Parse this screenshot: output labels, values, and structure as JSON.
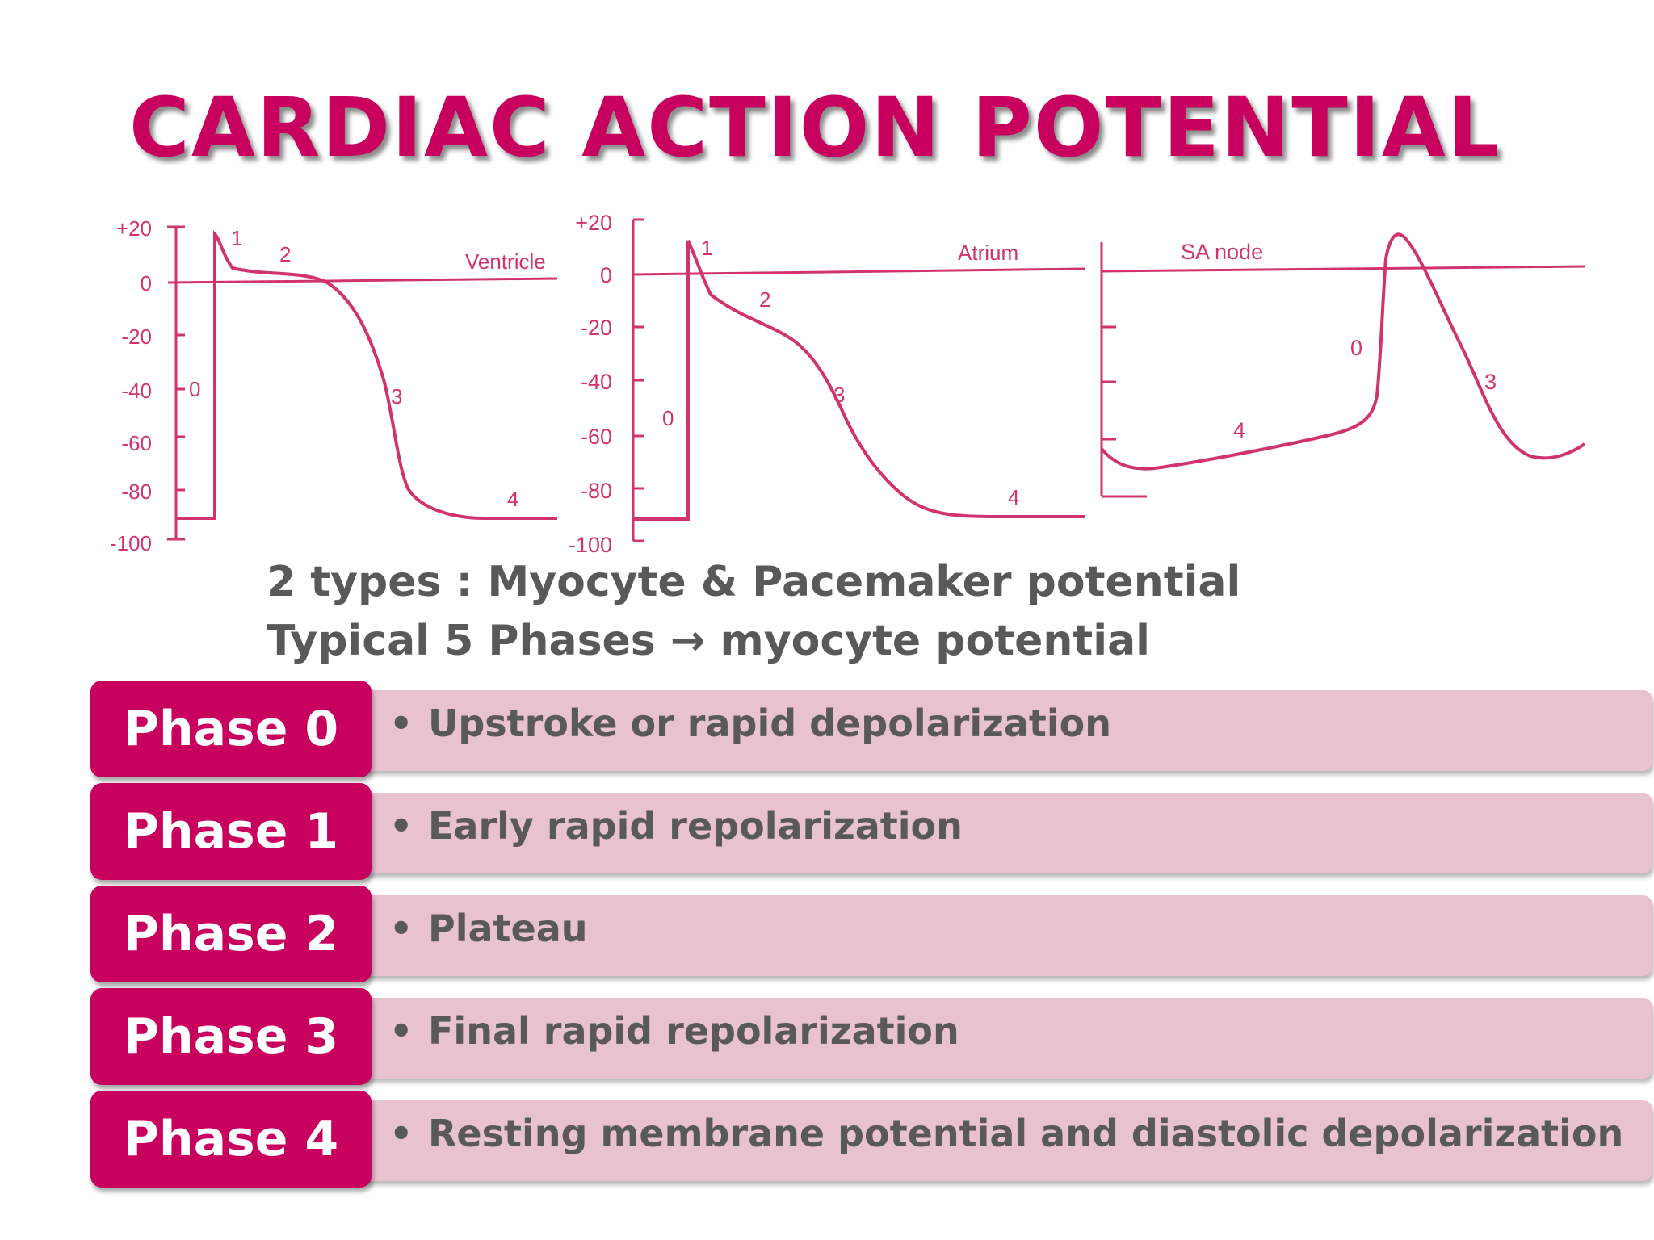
{
  "title": "CARDIAC ACTION POTENTIAL",
  "diagrams": {
    "ventricle": {
      "label": "Ventricle",
      "y_ticks": [
        "+20",
        "0",
        "-20",
        "-40",
        "-60",
        "-80",
        "-100"
      ],
      "phase_labels": [
        "0",
        "1",
        "2",
        "3",
        "4"
      ]
    },
    "atrium": {
      "label": "Atrium",
      "y_ticks": [
        "+20",
        "0",
        "-20",
        "-40",
        "-60",
        "-80",
        "-100"
      ],
      "phase_labels": [
        "0",
        "1",
        "2",
        "3",
        "4"
      ]
    },
    "sa_node": {
      "label": "SA node",
      "phase_labels": [
        "0",
        "3",
        "4"
      ]
    }
  },
  "subtitle": {
    "line1": "2 types : Myocyte & Pacemaker potential",
    "line2": "Typical 5 Phases → myocyte potential"
  },
  "phases": [
    {
      "name": "Phase 0",
      "bullet": "•",
      "description": "Upstroke or rapid depolarization"
    },
    {
      "name": "Phase 1",
      "bullet": "•",
      "description": "Early rapid repolarization"
    },
    {
      "name": "Phase 2",
      "bullet": "•",
      "description": "Plateau"
    },
    {
      "name": "Phase 3",
      "bullet": "•",
      "description": "Final rapid repolarization"
    },
    {
      "name": "Phase 4",
      "bullet": "•",
      "description": "Resting membrane potential and diastolic depolarization"
    }
  ],
  "colors": {
    "accent": "#c8005e",
    "curve": "#d1336e",
    "bar": "#e8c2cf",
    "text": "#595959"
  }
}
